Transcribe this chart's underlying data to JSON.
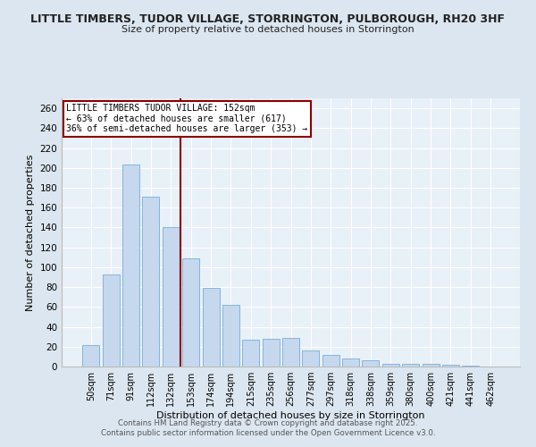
{
  "title_line1": "LITTLE TIMBERS, TUDOR VILLAGE, STORRINGTON, PULBOROUGH, RH20 3HF",
  "title_line2": "Size of property relative to detached houses in Storrington",
  "xlabel": "Distribution of detached houses by size in Storrington",
  "ylabel": "Number of detached properties",
  "categories": [
    "50sqm",
    "71sqm",
    "91sqm",
    "112sqm",
    "132sqm",
    "153sqm",
    "174sqm",
    "194sqm",
    "215sqm",
    "235sqm",
    "256sqm",
    "277sqm",
    "297sqm",
    "318sqm",
    "338sqm",
    "359sqm",
    "380sqm",
    "400sqm",
    "421sqm",
    "441sqm",
    "462sqm"
  ],
  "values": [
    22,
    93,
    203,
    171,
    140,
    109,
    79,
    62,
    27,
    28,
    29,
    16,
    12,
    8,
    6,
    3,
    3,
    3,
    2,
    1,
    0
  ],
  "bar_color": "#c5d8ee",
  "bar_edge_color": "#7aadd4",
  "vline_color": "#8b0000",
  "annotation_text": "LITTLE TIMBERS TUDOR VILLAGE: 152sqm\n← 63% of detached houses are smaller (617)\n36% of semi-detached houses are larger (353) →",
  "annotation_box_edgecolor": "#8b0000",
  "ylim": [
    0,
    270
  ],
  "yticks": [
    0,
    20,
    40,
    60,
    80,
    100,
    120,
    140,
    160,
    180,
    200,
    220,
    240,
    260
  ],
  "footer_line1": "Contains HM Land Registry data © Crown copyright and database right 2025.",
  "footer_line2": "Contains public sector information licensed under the Open Government Licence v3.0.",
  "bg_color": "#dce6f0",
  "plot_bg_color": "#e8f0f8",
  "grid_color": "#ffffff"
}
